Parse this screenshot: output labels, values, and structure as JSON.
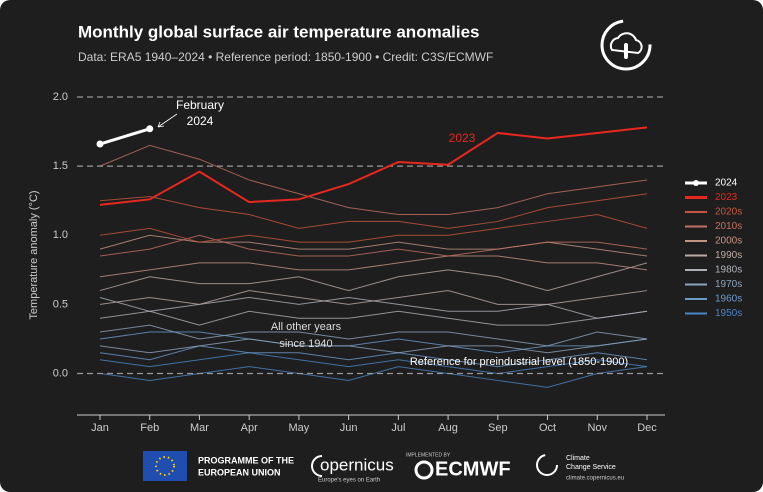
{
  "chart_data": {
    "type": "line",
    "title": "Monthly global surface air temperature anomalies",
    "subtitle": "Data: ERA5 1940–2024 • Reference period: 1850-1900 • Credit: C3S/ECMWF",
    "y_label": "Temperature anomaly (°C)",
    "categories": [
      "Jan",
      "Feb",
      "Mar",
      "Apr",
      "May",
      "Jun",
      "Jul",
      "Aug",
      "Sep",
      "Oct",
      "Nov",
      "Dec"
    ],
    "ylim": [
      -0.3,
      2.0
    ],
    "yticks": [
      {
        "value": 0,
        "label": "0.0"
      },
      0.5,
      {
        "value": 1,
        "label": "1.0"
      },
      1.5,
      {
        "value": 2,
        "label": "2.0"
      }
    ],
    "reference_lines": [
      0,
      1.5,
      2
    ],
    "series": [
      {
        "name": "2024",
        "color": "#ffffff",
        "values": [
          1.66,
          1.77,
          null,
          null,
          null,
          null,
          null,
          null,
          null,
          null,
          null,
          null
        ]
      },
      {
        "name": "2023",
        "color": "#e8281e",
        "values": [
          1.22,
          1.26,
          1.46,
          1.24,
          1.26,
          1.37,
          1.53,
          1.51,
          1.74,
          1.7,
          1.74,
          1.78
        ]
      }
    ],
    "decades": [
      {
        "name": "2020s",
        "color": "#c8563c",
        "lines": [
          [
            1.25,
            1.28,
            1.2,
            1.15,
            1.05,
            1.1,
            1.1,
            1.05,
            1.1,
            1.2,
            1.25,
            1.3
          ],
          [
            1.0,
            1.05,
            0.95,
            1.0,
            0.95,
            0.95,
            1.0,
            1.0,
            1.05,
            1.1,
            1.15,
            1.05
          ]
        ]
      },
      {
        "name": "2010s",
        "color": "#c27262",
        "lines": [
          [
            1.5,
            1.65,
            1.55,
            1.4,
            1.3,
            1.2,
            1.15,
            1.15,
            1.2,
            1.3,
            1.35,
            1.4
          ],
          [
            0.85,
            0.9,
            1.0,
            0.9,
            0.85,
            0.85,
            0.9,
            0.85,
            0.9,
            0.95,
            0.95,
            0.9
          ]
        ]
      },
      {
        "name": "2000s",
        "color": "#c49484",
        "lines": [
          [
            0.9,
            1.0,
            0.95,
            0.95,
            0.9,
            0.9,
            0.95,
            0.9,
            0.9,
            0.95,
            0.9,
            0.85
          ],
          [
            0.7,
            0.75,
            0.8,
            0.8,
            0.75,
            0.75,
            0.8,
            0.85,
            0.85,
            0.8,
            0.8,
            0.75
          ]
        ]
      },
      {
        "name": "1990s",
        "color": "#bcaaa4",
        "lines": [
          [
            0.6,
            0.7,
            0.65,
            0.65,
            0.7,
            0.6,
            0.7,
            0.75,
            0.7,
            0.6,
            0.7,
            0.8
          ],
          [
            0.5,
            0.55,
            0.5,
            0.6,
            0.55,
            0.5,
            0.55,
            0.6,
            0.5,
            0.5,
            0.55,
            0.6
          ]
        ]
      },
      {
        "name": "1980s",
        "color": "#aeb0b8",
        "lines": [
          [
            0.55,
            0.45,
            0.5,
            0.55,
            0.5,
            0.55,
            0.5,
            0.45,
            0.45,
            0.5,
            0.4,
            0.45
          ],
          [
            0.4,
            0.45,
            0.35,
            0.45,
            0.4,
            0.4,
            0.45,
            0.4,
            0.35,
            0.35,
            0.4,
            0.45
          ]
        ]
      },
      {
        "name": "1970s",
        "color": "#8ea4bc",
        "lines": [
          [
            0.3,
            0.35,
            0.25,
            0.3,
            0.3,
            0.25,
            0.3,
            0.3,
            0.25,
            0.2,
            0.3,
            0.25
          ],
          [
            0.2,
            0.15,
            0.2,
            0.25,
            0.2,
            0.2,
            0.15,
            0.2,
            0.2,
            0.15,
            0.2,
            0.25
          ]
        ]
      },
      {
        "name": "1960s",
        "color": "#6c9ac8",
        "lines": [
          [
            0.25,
            0.3,
            0.3,
            0.25,
            0.2,
            0.2,
            0.25,
            0.2,
            0.15,
            0.2,
            0.2,
            0.25
          ],
          [
            0.15,
            0.1,
            0.2,
            0.15,
            0.15,
            0.1,
            0.15,
            0.1,
            0.05,
            0.1,
            0.15,
            0.1
          ]
        ]
      },
      {
        "name": "1950s",
        "color": "#4a86c4",
        "lines": [
          [
            0.1,
            0.05,
            0.1,
            0.15,
            0.1,
            0.05,
            0.1,
            0.05,
            0.0,
            0.05,
            0.1,
            0.05
          ],
          [
            0.0,
            -0.05,
            0.0,
            0.05,
            0.0,
            -0.05,
            0.05,
            0.0,
            -0.05,
            -0.1,
            0.0,
            0.05
          ]
        ]
      }
    ],
    "annotations": {
      "february_2024": [
        "February",
        "2024"
      ],
      "label_2023": "2023",
      "other_years": [
        "All other years",
        "since 1940"
      ],
      "reference": "Reference for preindustrial level (1850-1900)"
    }
  },
  "footer": {
    "eu": [
      "PROGRAMME OF THE",
      "EUROPEAN UNION"
    ],
    "copernicus": "opernicus",
    "copernicus_tagline": "Europe's eyes on Earth",
    "implemented_by": "IMPLEMENTED BY",
    "ecmwf": "ECMWF",
    "c3s": [
      "Climate",
      "Change Service"
    ],
    "c3s_url": "climate.copernicus.eu"
  }
}
